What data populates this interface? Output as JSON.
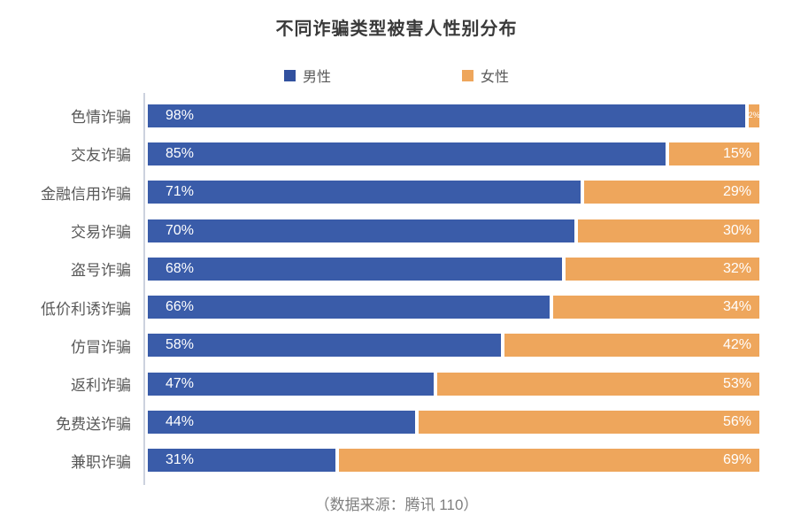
{
  "title": "不同诈骗类型被害人性别分布",
  "source_note": "（数据来源：腾讯 110）",
  "colors": {
    "male_bar": "#3a5ca9",
    "female_bar": "#eea65c",
    "male_legend": "#31519f",
    "female_legend": "#eea65c",
    "axis_line": "#ccd2de",
    "bar_value_text": "#ffffff",
    "category_text": "#595959",
    "title_text": "#3a3a3a",
    "source_text": "#7f7f7f"
  },
  "legend": {
    "items": [
      {
        "label": "男性",
        "color": "#31519f"
      },
      {
        "label": "女性",
        "color": "#eea65c"
      }
    ]
  },
  "chart_data": {
    "type": "bar",
    "orientation": "horizontal",
    "stacked": true,
    "title": "不同诈骗类型被害人性别分布",
    "xlabel": "",
    "ylabel": "",
    "xlim": [
      0,
      100
    ],
    "value_format": "percent",
    "grid": false,
    "legend_position": "top",
    "categories": [
      "色情诈骗",
      "交友诈骗",
      "金融信用诈骗",
      "交易诈骗",
      "盗号诈骗",
      "低价利诱诈骗",
      "仿冒诈骗",
      "返利诈骗",
      "免费送诈骗",
      "兼职诈骗"
    ],
    "series": [
      {
        "name": "男性",
        "color": "#3a5ca9",
        "values": [
          98,
          85,
          71,
          70,
          68,
          66,
          58,
          47,
          44,
          31
        ]
      },
      {
        "name": "女性",
        "color": "#eea65c",
        "values": [
          2,
          15,
          29,
          30,
          32,
          34,
          42,
          53,
          56,
          69
        ]
      }
    ],
    "annotations": "每个条形段内以白色文字标注百分比；女性占比2%时使用小号字体"
  }
}
